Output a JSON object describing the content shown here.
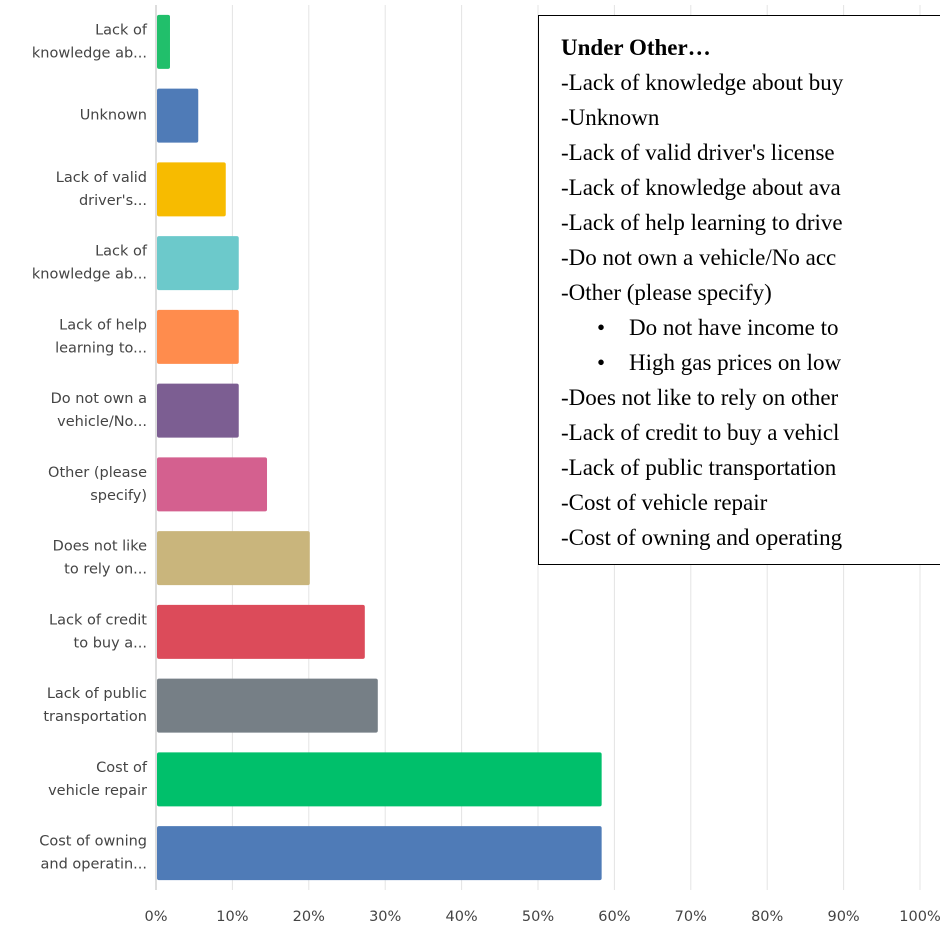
{
  "chart_data": {
    "type": "barh",
    "categories": [
      [
        "Lack of",
        "knowledge ab..."
      ],
      [
        "Unknown"
      ],
      [
        "Lack of valid",
        "driver's..."
      ],
      [
        "Lack of",
        "knowledge ab..."
      ],
      [
        "Lack of help",
        "learning to..."
      ],
      [
        "Do not own a",
        "vehicle/No..."
      ],
      [
        "Other (please",
        "specify)"
      ],
      [
        "Does not like",
        "to rely on..."
      ],
      [
        "Lack of credit",
        "to buy a..."
      ],
      [
        "Lack of public",
        "transportation"
      ],
      [
        "Cost of",
        "vehicle repair"
      ],
      [
        "Cost of owning",
        "and operatin..."
      ]
    ],
    "values": [
      1.7,
      5.4,
      9.0,
      10.7,
      10.7,
      10.7,
      14.4,
      20.0,
      27.2,
      28.9,
      58.2,
      58.2
    ],
    "colors": [
      "#21bf6b",
      "#4f7bb7",
      "#f7bb00",
      "#6cc9cb",
      "#ff8c4d",
      "#7c5e92",
      "#d4608f",
      "#c9b57c",
      "#dc4b5a",
      "#767f86",
      "#00c06b",
      "#4f7bb7"
    ],
    "xlim": [
      0,
      100
    ],
    "xticks": [
      {
        "value": 0,
        "label": "0%"
      },
      {
        "value": 10,
        "label": "10%"
      },
      {
        "value": 20,
        "label": "20%"
      },
      {
        "value": 30,
        "label": "30%"
      },
      {
        "value": 40,
        "label": "40%"
      },
      {
        "value": 50,
        "label": "50%"
      },
      {
        "value": 60,
        "label": "60%"
      },
      {
        "value": 70,
        "label": "70%"
      },
      {
        "value": 80,
        "label": "80%"
      },
      {
        "value": 90,
        "label": "90%"
      },
      {
        "value": 100,
        "label": "100%"
      }
    ],
    "grid": true
  },
  "note_box": {
    "title": "Under Other…",
    "lines": [
      "-Lack of knowledge about buy",
      "-Unknown",
      "-Lack of valid driver's license",
      "-Lack of knowledge about ava",
      "-Lack of help learning to drive",
      "-Do not own a vehicle/No acc",
      "-Other (please specify)"
    ],
    "bullets": [
      "Do not have income to",
      "High gas prices on low"
    ],
    "lines_after": [
      "-Does not like to rely on other",
      "-Lack of credit to buy a vehicl",
      "-Lack of public transportation",
      "-Cost of vehicle repair",
      "-Cost of owning and operating"
    ]
  }
}
